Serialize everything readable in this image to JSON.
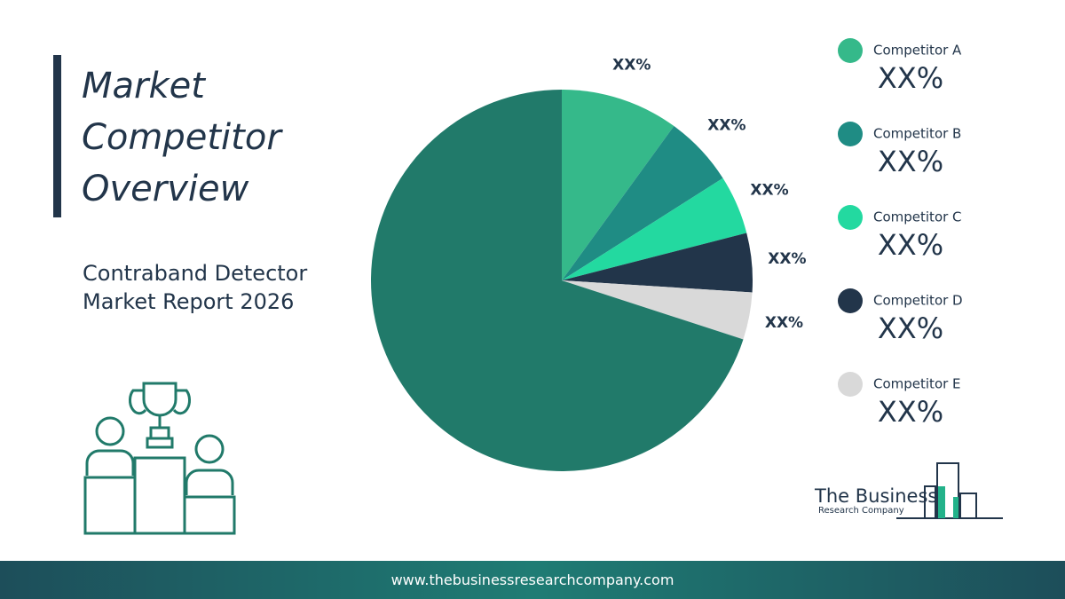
{
  "chart_data": {
    "type": "pie",
    "title": "Market Competitor Overview",
    "subtitle": "Contraband Detector Market Report 2026",
    "categories": [
      "Competitor A",
      "Competitor B",
      "Competitor C",
      "Competitor D",
      "Competitor E",
      null
    ],
    "values": [
      10,
      6,
      5,
      5,
      4,
      70
    ],
    "value_labels": [
      "XX%",
      "XX%",
      "XX%",
      "XX%",
      "XX%",
      null
    ],
    "colors": [
      "#35b98a",
      "#1f8c84",
      "#23d9a0",
      "#22354a",
      "#d9d9d9",
      "#217a6a"
    ]
  },
  "logo": {
    "line1": "The Business",
    "line2": "Research Company"
  },
  "footer": "www.thebusinessresearchcompany.com"
}
